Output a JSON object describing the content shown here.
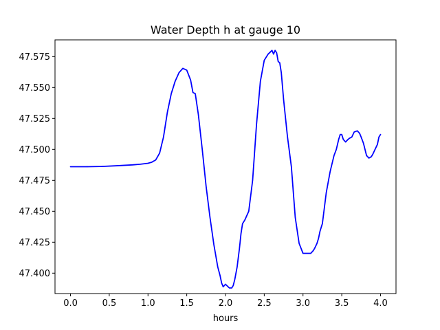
{
  "chart_data": {
    "type": "line",
    "title": "Water Depth h at gauge 10",
    "xlabel": "hours",
    "ylabel": "",
    "xlim": [
      -0.2,
      4.2
    ],
    "ylim": [
      47.3835,
      47.5885
    ],
    "x_ticks": [
      0.0,
      0.5,
      1.0,
      1.5,
      2.0,
      2.5,
      3.0,
      3.5,
      4.0
    ],
    "x_tick_labels": [
      "0.0",
      "0.5",
      "1.0",
      "1.5",
      "2.0",
      "2.5",
      "3.0",
      "3.5",
      "4.0"
    ],
    "y_ticks": [
      47.4,
      47.425,
      47.45,
      47.475,
      47.5,
      47.525,
      47.55,
      47.575
    ],
    "y_tick_labels": [
      "47.400",
      "47.425",
      "47.450",
      "47.475",
      "47.500",
      "47.525",
      "47.550",
      "47.575"
    ],
    "grid": false,
    "series": [
      {
        "color": "#0000ff",
        "x": [
          0.0,
          0.2,
          0.4,
          0.6,
          0.8,
          0.9,
          1.0,
          1.05,
          1.1,
          1.15,
          1.2,
          1.25,
          1.3,
          1.35,
          1.4,
          1.45,
          1.5,
          1.55,
          1.58,
          1.61,
          1.65,
          1.7,
          1.75,
          1.8,
          1.85,
          1.9,
          1.93,
          1.95,
          1.97,
          2.0,
          2.05,
          2.08,
          2.1,
          2.12,
          2.15,
          2.18,
          2.2,
          2.22,
          2.25,
          2.3,
          2.35,
          2.4,
          2.45,
          2.5,
          2.55,
          2.6,
          2.62,
          2.64,
          2.66,
          2.68,
          2.7,
          2.72,
          2.75,
          2.8,
          2.85,
          2.9,
          2.95,
          3.0,
          3.05,
          3.1,
          3.13,
          3.15,
          3.18,
          3.2,
          3.22,
          3.25,
          3.3,
          3.35,
          3.4,
          3.43,
          3.46,
          3.48,
          3.5,
          3.52,
          3.55,
          3.58,
          3.6,
          3.63,
          3.66,
          3.7,
          3.73,
          3.75,
          3.78,
          3.8,
          3.82,
          3.85,
          3.88,
          3.9,
          3.93,
          3.96,
          3.98,
          4.0
        ],
        "values": [
          47.486,
          47.486,
          47.4862,
          47.4868,
          47.4875,
          47.488,
          47.4888,
          47.4897,
          47.4915,
          47.497,
          47.51,
          47.53,
          47.545,
          47.555,
          47.562,
          47.5655,
          47.564,
          47.556,
          47.546,
          47.545,
          47.528,
          47.5,
          47.47,
          47.445,
          47.423,
          47.405,
          47.398,
          47.392,
          47.389,
          47.391,
          47.388,
          47.388,
          47.39,
          47.395,
          47.405,
          47.42,
          47.432,
          47.44,
          47.443,
          47.45,
          47.475,
          47.52,
          47.555,
          47.572,
          47.577,
          47.58,
          47.577,
          47.58,
          47.578,
          47.571,
          47.57,
          47.562,
          47.54,
          47.51,
          47.486,
          47.445,
          47.424,
          47.416,
          47.416,
          47.416,
          47.418,
          47.42,
          47.424,
          47.428,
          47.434,
          47.44,
          47.465,
          47.482,
          47.495,
          47.5,
          47.508,
          47.512,
          47.512,
          47.508,
          47.506,
          47.508,
          47.509,
          47.51,
          47.514,
          47.515,
          47.513,
          47.51,
          47.505,
          47.5,
          47.495,
          47.493,
          47.494,
          47.496,
          47.5,
          47.504,
          47.51,
          47.512
        ]
      }
    ]
  }
}
